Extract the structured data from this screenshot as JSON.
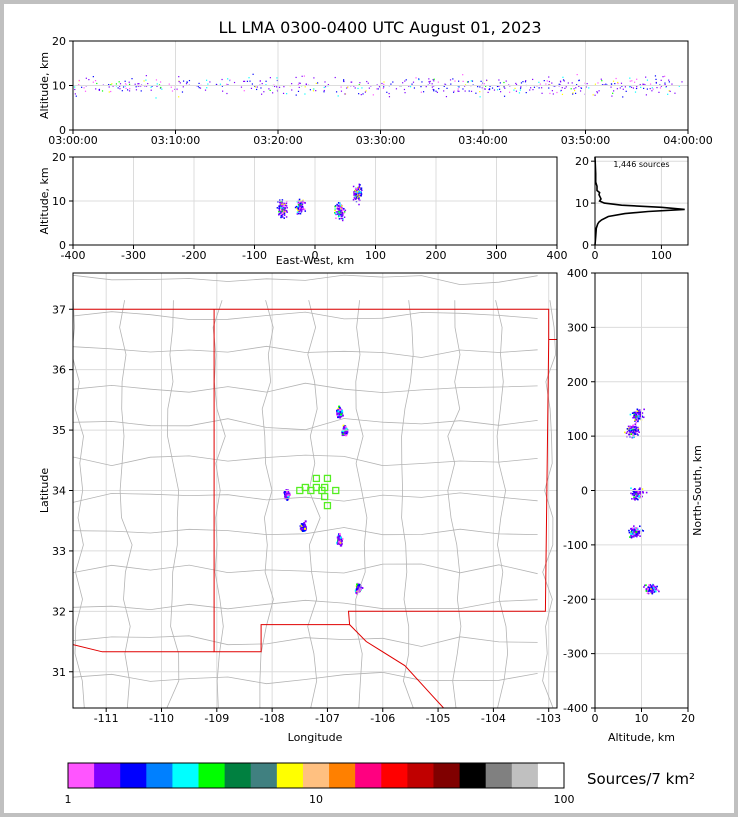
{
  "title": "LL LMA 0300-0400 UTC August 01, 2023",
  "colors": {
    "state_border": "#e00000",
    "county_border": "#b4b4b4",
    "grid": "#dcdcdc",
    "station": "#55ee22"
  },
  "chart_data": [
    {
      "name": "altitude-time",
      "type": "scatter",
      "ylabel": "Altitude, km",
      "xlabel": "",
      "ylim": [
        0,
        20
      ],
      "yticks": [
        "0",
        "10",
        "20"
      ],
      "xticks": [
        "03:00:00",
        "03:10:00",
        "03:20:00",
        "03:30:00",
        "03:40:00",
        "03:50:00",
        "04:00:00"
      ],
      "grid": true,
      "series_summary": "source points mostly at 6-14 km across the hour"
    },
    {
      "name": "altitude-eastwest",
      "type": "scatter",
      "ylabel": "Altitude, km",
      "xlabel": "East-West, km",
      "xlim": [
        -400,
        400
      ],
      "ylim": [
        0,
        20
      ],
      "xticks": [
        "-400",
        "-300",
        "-200",
        "-100",
        "0",
        "100",
        "200",
        "300",
        "400"
      ],
      "yticks": [
        "0",
        "10",
        "20"
      ],
      "clusters": [
        {
          "x": -55,
          "y": 8.5
        },
        {
          "x": -25,
          "y": 9
        },
        {
          "x": 40,
          "y": 8
        },
        {
          "x": 70,
          "y": 12
        }
      ]
    },
    {
      "name": "altitude-histogram",
      "type": "line",
      "annotation": "1,446 sources",
      "xlim": [
        0,
        140
      ],
      "ylim": [
        0,
        21
      ],
      "xticks": [
        "0",
        "100"
      ],
      "yticks": [
        "0",
        "10",
        "20"
      ],
      "x": [
        0,
        1,
        2,
        4,
        6,
        10,
        20,
        45,
        80,
        135,
        100,
        40,
        14,
        7,
        9,
        6,
        7,
        3,
        3,
        1,
        1,
        0
      ],
      "y": [
        0,
        2,
        4,
        5,
        5.5,
        6,
        6.8,
        7.5,
        8,
        8.5,
        9,
        9.5,
        10,
        10.5,
        11,
        12,
        12.5,
        13,
        14,
        15,
        17,
        21
      ]
    },
    {
      "name": "plan-view-map",
      "type": "scatter",
      "xlabel": "Longitude",
      "ylabel": "Latitude",
      "xlim": [
        -111.6,
        -102.85
      ],
      "ylim": [
        30.4,
        37.6
      ],
      "xticks": [
        "-111",
        "-110",
        "-109",
        "-108",
        "-107",
        "-106",
        "-105",
        "-104",
        "-103"
      ],
      "yticks": [
        "31",
        "32",
        "33",
        "34",
        "35",
        "36",
        "37"
      ],
      "clusters": [
        {
          "lon": -106.8,
          "lat": 35.3
        },
        {
          "lon": -106.7,
          "lat": 35.0
        },
        {
          "lon": -107.75,
          "lat": 33.95
        },
        {
          "lon": -107.45,
          "lat": 33.4
        },
        {
          "lon": -106.8,
          "lat": 33.2
        },
        {
          "lon": -106.45,
          "lat": 32.4
        }
      ],
      "stations": [
        {
          "lon": -107.2,
          "lat": 34.2
        },
        {
          "lon": -107.0,
          "lat": 34.2
        },
        {
          "lon": -107.4,
          "lat": 34.05
        },
        {
          "lon": -107.2,
          "lat": 34.05
        },
        {
          "lon": -107.05,
          "lat": 34.05
        },
        {
          "lon": -107.5,
          "lat": 34.0
        },
        {
          "lon": -107.3,
          "lat": 34.0
        },
        {
          "lon": -107.1,
          "lat": 34.0
        },
        {
          "lon": -106.85,
          "lat": 34.0
        },
        {
          "lon": -107.05,
          "lat": 33.9
        },
        {
          "lon": -107.0,
          "lat": 33.75
        }
      ]
    },
    {
      "name": "northsouth-altitude",
      "type": "scatter",
      "xlabel": "Altitude, km",
      "ylabel": "North-South, km",
      "xlim": [
        0,
        20
      ],
      "ylim": [
        -400,
        400
      ],
      "xticks": [
        "0",
        "10",
        "20"
      ],
      "yticks": [
        "-400",
        "-300",
        "-200",
        "-100",
        "0",
        "100",
        "200",
        "300",
        "400"
      ],
      "clusters": [
        {
          "alt": 9,
          "ns": 140
        },
        {
          "alt": 8,
          "ns": 110
        },
        {
          "alt": 9,
          "ns": -5
        },
        {
          "alt": 8.5,
          "ns": -75
        },
        {
          "alt": 12,
          "ns": -180
        }
      ]
    },
    {
      "name": "colorbar",
      "type": "heatmap",
      "label": "Sources/7 km²",
      "scale": "log",
      "ticks": [
        "1",
        "10",
        "100"
      ],
      "colors": [
        "#ff55ff",
        "#8000ff",
        "#0000ff",
        "#0080ff",
        "#00ffff",
        "#00ff00",
        "#008040",
        "#408080",
        "#ffff00",
        "#ffc080",
        "#ff8000",
        "#ff0080",
        "#ff0000",
        "#c00000",
        "#800000",
        "#000000",
        "#808080",
        "#c0c0c0",
        "#ffffff"
      ]
    }
  ]
}
